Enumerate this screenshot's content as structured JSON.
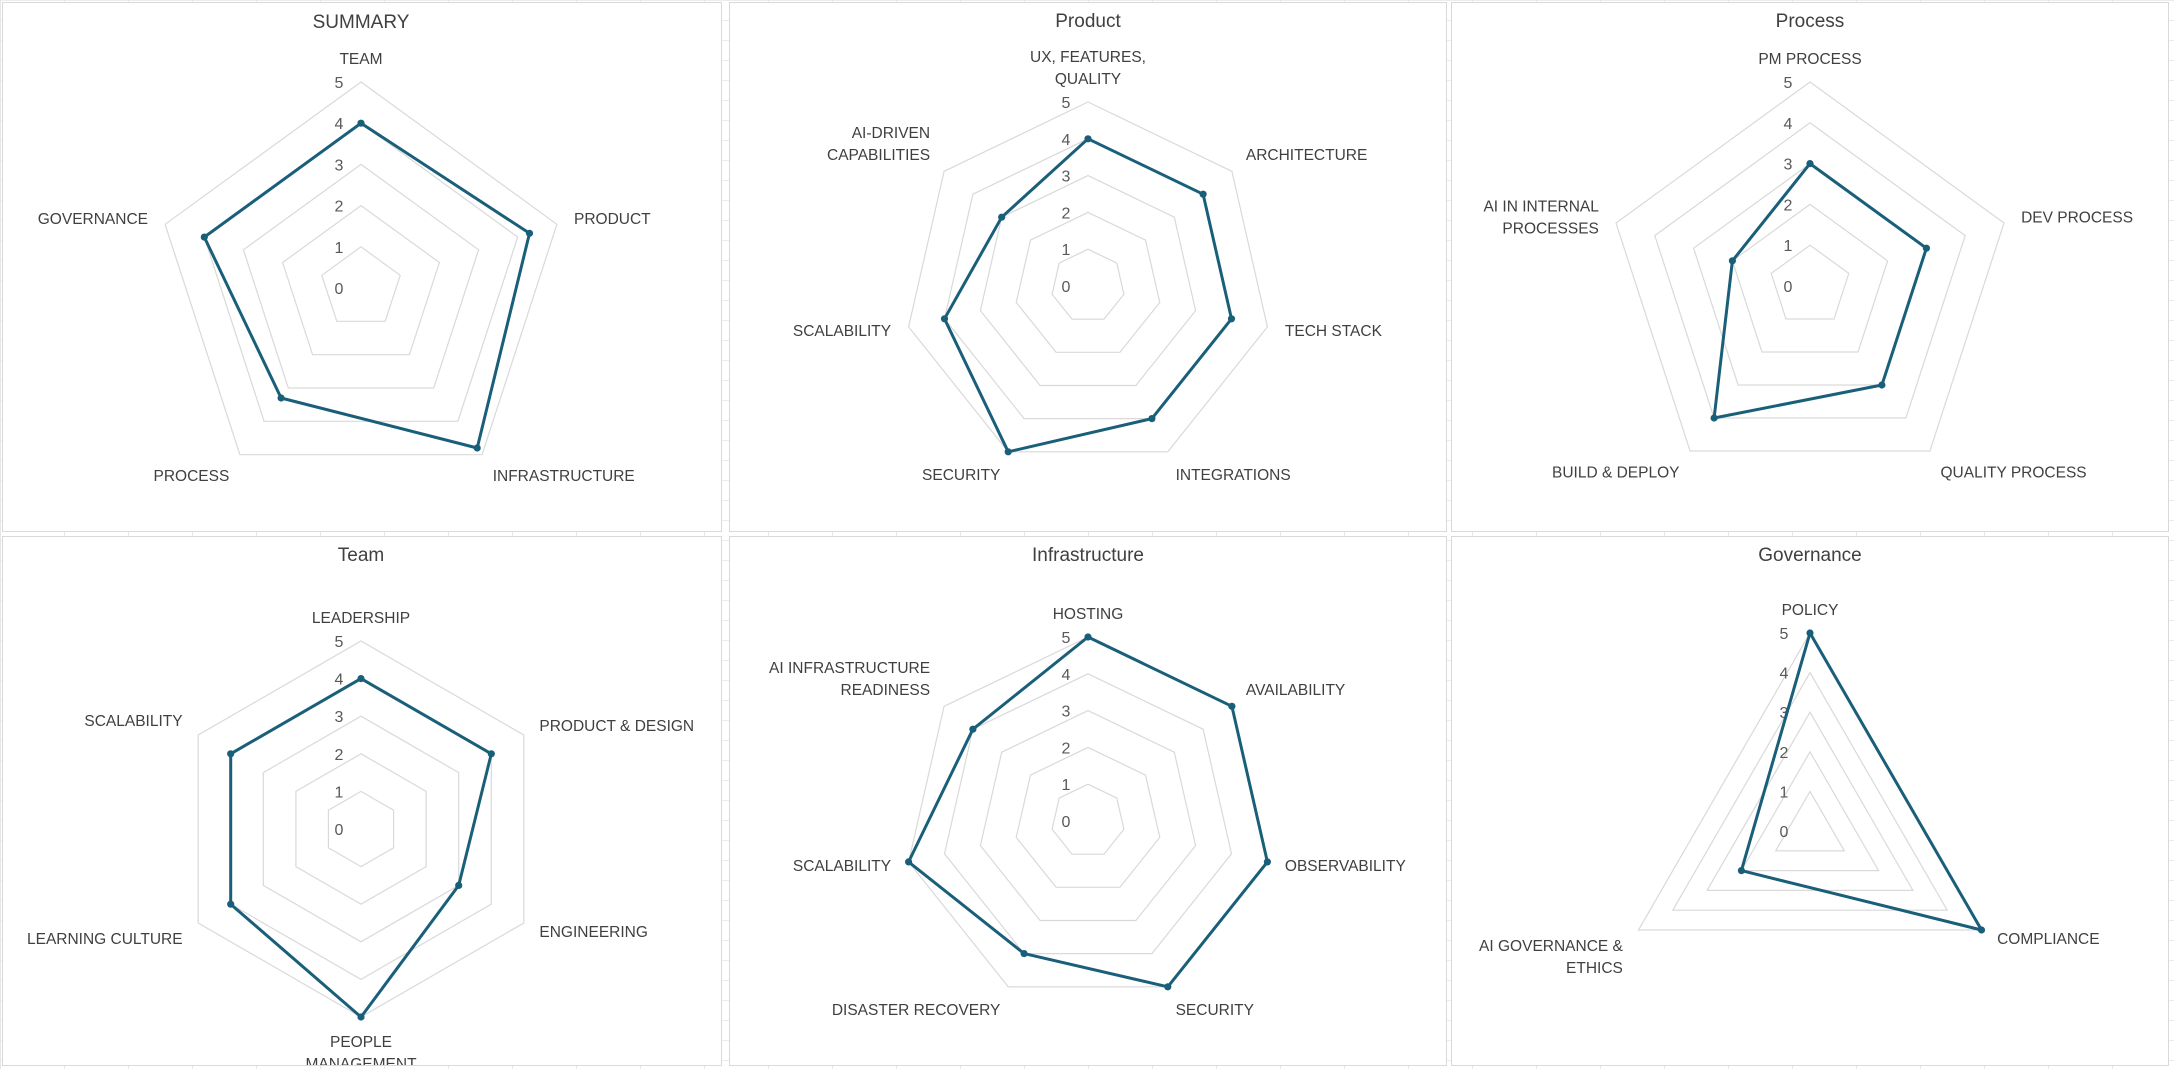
{
  "colors": {
    "series": "#1a5f7a",
    "grid": "#d9d9d9",
    "text": "#404040"
  },
  "chart_data": [
    {
      "type": "radar",
      "title": "SUMMARY",
      "categories": [
        [
          "TEAM"
        ],
        [
          "PRODUCT"
        ],
        [
          "INFRASTRUCTURE"
        ],
        [
          "PROCESS"
        ],
        [
          "GOVERNANCE"
        ]
      ],
      "values": [
        4,
        4.3,
        4.8,
        3.3,
        4
      ],
      "range": [
        0,
        5
      ],
      "ticks": [
        "0",
        "1",
        "2",
        "3",
        "4",
        "5"
      ],
      "grid": true
    },
    {
      "type": "radar",
      "title": "Product",
      "categories": [
        [
          "UX, FEATURES,",
          "QUALITY"
        ],
        [
          "ARCHITECTURE"
        ],
        [
          "TECH STACK"
        ],
        [
          "INTEGRATIONS"
        ],
        [
          "SECURITY"
        ],
        [
          "SCALABILITY"
        ],
        [
          "AI-DRIVEN",
          "CAPABILITIES"
        ]
      ],
      "values": [
        4,
        4,
        4,
        4,
        5,
        4,
        3
      ],
      "range": [
        0,
        5
      ],
      "ticks": [
        "0",
        "1",
        "2",
        "3",
        "4",
        "5"
      ],
      "grid": true
    },
    {
      "type": "radar",
      "title": "Process",
      "categories": [
        [
          "PM PROCESS"
        ],
        [
          "DEV PROCESS"
        ],
        [
          "QUALITY PROCESS"
        ],
        [
          "BUILD & DEPLOY"
        ],
        [
          "AI IN INTERNAL",
          "PROCESSES"
        ]
      ],
      "values": [
        3,
        3,
        3,
        4,
        2
      ],
      "range": [
        0,
        5
      ],
      "ticks": [
        "0",
        "1",
        "2",
        "3",
        "4",
        "5"
      ],
      "grid": true
    },
    {
      "type": "radar",
      "title": "Team",
      "categories": [
        [
          "LEADERSHIP"
        ],
        [
          "PRODUCT & DESIGN"
        ],
        [
          "ENGINEERING"
        ],
        [
          "PEOPLE",
          "MANAGEMENT"
        ],
        [
          "LEARNING CULTURE"
        ],
        [
          "SCALABILITY"
        ]
      ],
      "values": [
        4,
        4,
        3,
        5,
        4,
        4
      ],
      "range": [
        0,
        5
      ],
      "ticks": [
        "0",
        "1",
        "2",
        "3",
        "4",
        "5"
      ],
      "grid": true
    },
    {
      "type": "radar",
      "title": "Infrastructure",
      "categories": [
        [
          "HOSTING"
        ],
        [
          "AVAILABILITY"
        ],
        [
          "OBSERVABILITY"
        ],
        [
          "SECURITY"
        ],
        [
          "DISASTER RECOVERY"
        ],
        [
          "SCALABILITY"
        ],
        [
          "AI INFRASTRUCTURE",
          "READINESS"
        ]
      ],
      "values": [
        5,
        5,
        5,
        5,
        4,
        5,
        4
      ],
      "range": [
        0,
        5
      ],
      "ticks": [
        "0",
        "1",
        "2",
        "3",
        "4",
        "5"
      ],
      "grid": true
    },
    {
      "type": "radar",
      "title": "Governance",
      "categories": [
        [
          "POLICY"
        ],
        [
          "COMPLIANCE"
        ],
        [
          "AI GOVERNANCE &",
          "ETHICS"
        ]
      ],
      "values": [
        5,
        5,
        2
      ],
      "range": [
        0,
        5
      ],
      "ticks": [
        "0",
        "1",
        "2",
        "3",
        "4",
        "5"
      ],
      "grid": true
    }
  ]
}
